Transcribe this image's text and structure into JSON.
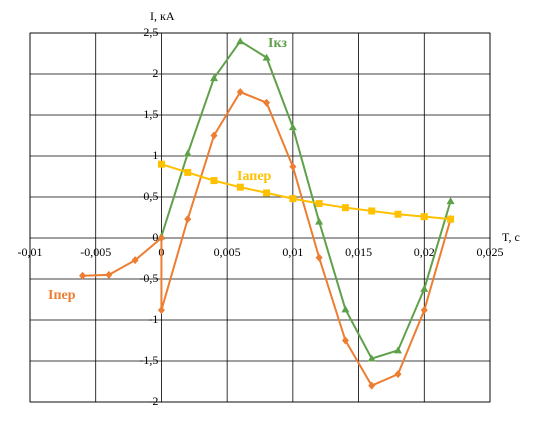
{
  "chart_data": {
    "type": "line",
    "x_label": "T, с",
    "y_label": "I, кА",
    "xlim": [
      -0.01,
      0.025
    ],
    "xticks": [
      {
        "value": -0.01,
        "label": "-0,01"
      },
      {
        "value": -0.005,
        "label": "-0,005"
      },
      0,
      {
        "value": 0.005,
        "label": "0,005"
      },
      {
        "value": 0.01,
        "label": "0,01"
      },
      {
        "value": 0.015,
        "label": "0,015"
      },
      {
        "value": 0.02,
        "label": "0,02"
      },
      {
        "value": 0.025,
        "label": "0,025"
      }
    ],
    "ylim": [
      -2,
      2.5
    ],
    "yticks": [
      -2,
      {
        "value": -1.5,
        "label": "-1,5"
      },
      -1,
      {
        "value": -0.5,
        "label": "-0,5"
      },
      0,
      {
        "value": 0.5,
        "label": "0,5"
      },
      1,
      {
        "value": 1.5,
        "label": "1,5"
      },
      2,
      {
        "value": 2.5,
        "label": "2,5"
      }
    ],
    "grid": true,
    "series": [
      {
        "name": "Iкз",
        "color": "#5fa14a",
        "marker": "triangle",
        "x": [
          0,
          0.002,
          0.004,
          0.006,
          0.008,
          0.01,
          0.012,
          0.014,
          0.016,
          0.018,
          0.02,
          0.022
        ],
        "values": [
          0.02,
          1.03,
          1.95,
          2.4,
          2.2,
          1.35,
          0.2,
          -0.87,
          -1.47,
          -1.37,
          -0.62,
          0.45
        ]
      },
      {
        "name": "Iпер",
        "color": "#ed7d31",
        "marker": "diamond",
        "x": [
          -0.006,
          -0.004,
          -0.002,
          0,
          0,
          0.002,
          0.004,
          0.006,
          0.008,
          0.01,
          0.012,
          0.014,
          0.016,
          0.018,
          0.02,
          0.022
        ],
        "values": [
          -0.46,
          -0.45,
          -0.27,
          0,
          -0.88,
          0.23,
          1.25,
          1.78,
          1.65,
          0.87,
          -0.24,
          -1.25,
          -1.8,
          -1.66,
          -0.88,
          0.23
        ]
      },
      {
        "name": "Iапер",
        "color": "#ffc000",
        "marker": "square",
        "x": [
          0,
          0.002,
          0.004,
          0.006,
          0.008,
          0.01,
          0.012,
          0.014,
          0.016,
          0.018,
          0.02,
          0.022
        ],
        "values": [
          0.9,
          0.8,
          0.7,
          0.62,
          0.55,
          0.48,
          0.42,
          0.37,
          0.33,
          0.29,
          0.26,
          0.23
        ]
      }
    ]
  }
}
